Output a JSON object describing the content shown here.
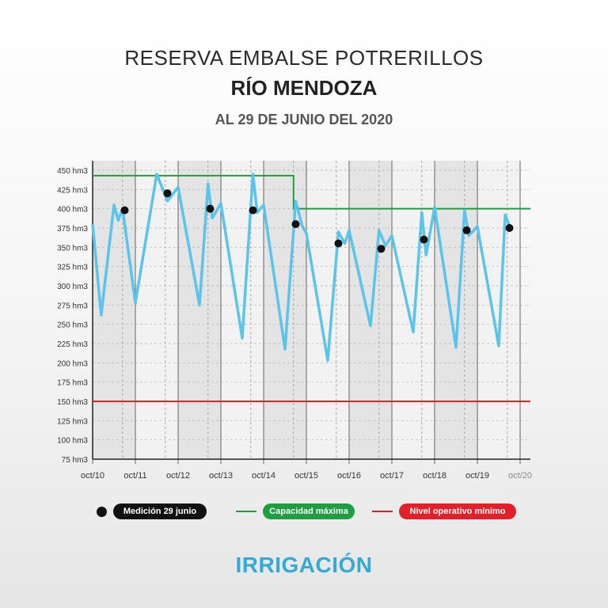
{
  "header": {
    "title": "RESERVA EMBALSE POTRERILLOS",
    "subtitle": "RÍO MENDOZA",
    "date": "AL 29 DE JUNIO DEL 2020"
  },
  "legend": {
    "medicion": "Medición 29 junio",
    "capacidad": "Capacidad máxima",
    "minimo": "Nivel operativo mínimo"
  },
  "brand": "IRRIGACIÓN",
  "colors": {
    "series": "#5bc4ea",
    "capacidad": "#1e9e3e",
    "minimo": "#e3202a",
    "dots": "#111111"
  },
  "chart_data": {
    "type": "line",
    "ylim": [
      75,
      450
    ],
    "y_ticks": [
      "75 hm3",
      "100 hm3",
      "125 hm3",
      "150 hm3",
      "175 hm3",
      "200 hm3",
      "225 hm3",
      "250 hm3",
      "275 hm3",
      "300 hm3",
      "325 hm3",
      "350 hm3",
      "375 hm3",
      "400 hm3",
      "425 hm3",
      "450 hm3"
    ],
    "y_tick_values": [
      75,
      100,
      125,
      150,
      175,
      200,
      225,
      250,
      275,
      300,
      325,
      350,
      375,
      400,
      425,
      450
    ],
    "x_ticks": [
      "oct/10",
      "oct/11",
      "oct/12",
      "oct/13",
      "oct/14",
      "oct/15",
      "oct/16",
      "oct/17",
      "oct/18",
      "oct/19",
      "oct/20"
    ],
    "x_tick_values": [
      2010.75,
      2011.75,
      2012.75,
      2013.75,
      2014.75,
      2015.75,
      2016.75,
      2017.75,
      2018.75,
      2019.75,
      2020.75
    ],
    "series": [
      {
        "x": [
          2010.75,
          2010.95,
          2011.25,
          2011.35,
          2011.45,
          2011.75,
          2012.25,
          2012.5,
          2012.75,
          2013.25,
          2013.45,
          2013.55,
          2013.75,
          2014.25,
          2014.5,
          2014.6,
          2014.75,
          2015.25,
          2015.5,
          2015.65,
          2015.75,
          2016.25,
          2016.5,
          2016.65,
          2016.75,
          2017.25,
          2017.45,
          2017.6,
          2017.75,
          2018.25,
          2018.45,
          2018.55,
          2018.75,
          2019.25,
          2019.45,
          2019.55,
          2019.75,
          2020.25,
          2020.4,
          2020.5
        ],
        "y": [
          380,
          262,
          405,
          385,
          400,
          278,
          445,
          410,
          428,
          275,
          432,
          388,
          407,
          232,
          445,
          395,
          405,
          218,
          410,
          378,
          368,
          203,
          370,
          355,
          372,
          248,
          372,
          352,
          365,
          240,
          395,
          340,
          402,
          220,
          398,
          365,
          377,
          222,
          392,
          378
        ]
      }
    ],
    "capacidad_maxima": {
      "x": [
        2010.75,
        2015.45,
        2015.45,
        2020.65
      ],
      "y": [
        443,
        443,
        400,
        400
      ]
    },
    "nivel_operativo_minimo": 150,
    "medicion_29_junio": {
      "x": [
        2011.5,
        2012.5,
        2013.5,
        2014.5,
        2015.5,
        2016.5,
        2017.5,
        2018.5,
        2019.5,
        2020.5
      ],
      "y": [
        398,
        420,
        400,
        398,
        380,
        355,
        348,
        360,
        372,
        375
      ]
    }
  }
}
